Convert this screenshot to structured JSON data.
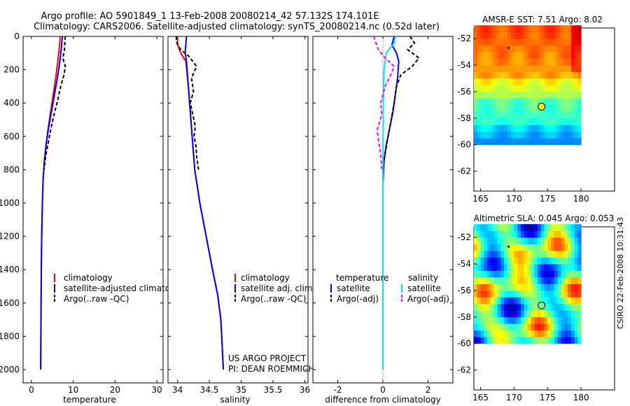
{
  "title": {
    "line1": "Argo profile: AO 5901849_1 13-Feb-2008 20080214_42 57.132S 174.101E",
    "line2": "Climatology: CARS2006. Satellite-adjusted climatology: synTS_20080214.nc (0.52d later)"
  },
  "credit": "CSIRO 22-Feb-2008 10:31:43",
  "project_note": {
    "line1": "US ARGO PROJECT",
    "line2": "PI: DEAN ROEMMICH"
  },
  "colors": {
    "climatology": "#ff0000",
    "satellite": "#0000ff",
    "argo": "#000000",
    "salinity_satellite": "#00e5ee",
    "argo_adj_salinity": "#ff00ff"
  },
  "chart_data": [
    {
      "id": "temperature",
      "type": "line",
      "xlabel": "temperature",
      "ylabel": "",
      "xlim": [
        -2,
        31.5
      ],
      "ylim": [
        2080,
        0
      ],
      "xticks": [
        "0",
        "10",
        "20",
        "30"
      ],
      "xtick_values": [
        0,
        10,
        20,
        30
      ],
      "yticks": [
        "0",
        "200",
        "400",
        "600",
        "800",
        "1000",
        "1200",
        "1400",
        "1600",
        "1800",
        "2000"
      ],
      "ytick_values": [
        0,
        200,
        400,
        600,
        800,
        1000,
        1200,
        1400,
        1600,
        1800,
        2000
      ],
      "legend": [
        "climatology",
        "satellite-adjusted climatology",
        "Argo(..raw -QC)"
      ],
      "series": [
        {
          "name": "climatology",
          "color": "#ff0000",
          "dash": false,
          "x": [
            6.9,
            6.7,
            6.3,
            5.8,
            5.2,
            4.6,
            4.0,
            3.5,
            3.1,
            2.8,
            2.6,
            2.45,
            2.35,
            2.3,
            2.25,
            2.2
          ],
          "y": [
            0,
            60,
            150,
            250,
            350,
            450,
            550,
            650,
            750,
            850,
            1000,
            1200,
            1400,
            1600,
            1800,
            2000
          ]
        },
        {
          "name": "satellite-adjusted climatology",
          "color": "#0000ff",
          "dash": false,
          "x": [
            7.4,
            7.2,
            6.8,
            6.2,
            5.5,
            4.8,
            4.1,
            3.5,
            3.1,
            2.8,
            2.6,
            2.45,
            2.35,
            2.3,
            2.25,
            2.2
          ],
          "y": [
            0,
            60,
            150,
            250,
            350,
            450,
            550,
            650,
            750,
            850,
            1000,
            1200,
            1400,
            1600,
            1800,
            2000
          ]
        },
        {
          "name": "Argo(..raw -QC)",
          "color": "#000000",
          "dash": true,
          "x": [
            8.1,
            8.0,
            7.9,
            7.5,
            8.1,
            7.8,
            7.0,
            6.3,
            5.3,
            4.6,
            4.0,
            3.4,
            3.0
          ],
          "y": [
            0,
            40,
            80,
            130,
            180,
            230,
            300,
            380,
            480,
            560,
            640,
            720,
            800
          ]
        }
      ]
    },
    {
      "id": "salinity",
      "type": "line",
      "xlabel": "salinity",
      "ylabel": "",
      "xlim": [
        33.85,
        36.05
      ],
      "ylim": [
        2080,
        0
      ],
      "xticks": [
        "34",
        "34.5",
        "35",
        "35.5",
        "36"
      ],
      "xtick_values": [
        34,
        34.5,
        35,
        35.5,
        36
      ],
      "legend": [
        "climatology",
        "satellite adj. clim.",
        "Argo(..raw -QC)"
      ],
      "series": [
        {
          "name": "climatology",
          "color": "#ff0000",
          "dash": false,
          "x": [
            34.0,
            34.0,
            34.05,
            34.13,
            34.17,
            34.2,
            34.23,
            34.27,
            34.35,
            34.45,
            34.55,
            34.63,
            34.68,
            34.7,
            34.72
          ],
          "y": [
            0,
            50,
            100,
            150,
            300,
            450,
            600,
            800,
            1000,
            1200,
            1400,
            1550,
            1700,
            1850,
            2000
          ]
        },
        {
          "name": "satellite adj. clim.",
          "color": "#0000ff",
          "dash": false,
          "x": [
            34.14,
            34.13,
            34.12,
            34.14,
            34.17,
            34.2,
            34.23,
            34.27,
            34.35,
            34.45,
            34.55,
            34.63,
            34.68,
            34.7,
            34.72
          ],
          "y": [
            0,
            50,
            100,
            150,
            300,
            450,
            600,
            800,
            1000,
            1200,
            1400,
            1550,
            1700,
            1850,
            2000
          ]
        },
        {
          "name": "Argo(..raw -QC)",
          "color": "#000000",
          "dash": true,
          "x": [
            33.98,
            33.99,
            34.05,
            34.18,
            34.3,
            34.22,
            34.25,
            34.2,
            34.24,
            34.28,
            34.26,
            34.29,
            34.3,
            34.33
          ],
          "y": [
            0,
            40,
            80,
            120,
            180,
            250,
            330,
            400,
            470,
            540,
            600,
            660,
            720,
            800
          ]
        }
      ]
    },
    {
      "id": "difference",
      "type": "line",
      "xlabel": "difference from climatology",
      "ylabel": "",
      "xlim": [
        -3.1,
        3.1
      ],
      "ylim": [
        2080,
        0
      ],
      "xticks": [
        "-2",
        "0",
        "2"
      ],
      "xtick_values": [
        -2,
        0,
        2
      ],
      "legend_groups": [
        {
          "title": "temperature",
          "items": [
            "satellite",
            "Argo(-adj)"
          ]
        },
        {
          "title": "salinity",
          "items": [
            "satellite",
            "Argo(-adj)"
          ]
        }
      ],
      "series": [
        {
          "name": "temperature satellite",
          "color": "#0000ff",
          "dash": false,
          "x": [
            0.5,
            0.4,
            0.6,
            0.7,
            0.65,
            0.55,
            0.45,
            0.3,
            0.15,
            0.05,
            0.0,
            0.0,
            0.0
          ],
          "y": [
            0,
            50,
            100,
            150,
            250,
            350,
            450,
            550,
            650,
            750,
            900,
            1200,
            2000
          ]
        },
        {
          "name": "temperature Argo(-adj)",
          "color": "#000000",
          "dash": true,
          "x": [
            1.2,
            1.4,
            1.1,
            1.6,
            1.3,
            0.8,
            0.6,
            0.5,
            0.3,
            0.1,
            0.0
          ],
          "y": [
            0,
            40,
            80,
            130,
            180,
            230,
            300,
            400,
            550,
            700,
            800
          ]
        },
        {
          "name": "salinity satellite",
          "color": "#00e5ee",
          "dash": false,
          "x": [
            0.55,
            0.5,
            0.15,
            0.05,
            0.02,
            0.0,
            0.0,
            0.0,
            0.0
          ],
          "y": [
            0,
            40,
            100,
            200,
            400,
            800,
            1000,
            1400,
            2000
          ]
        },
        {
          "name": "salinity Argo(-adj)",
          "color": "#ff00ff",
          "dash": true,
          "x": [
            -0.4,
            -0.3,
            -0.2,
            0.1,
            0.5,
            0.35,
            0.1,
            -0.1,
            -0.05,
            -0.25,
            -0.2,
            -0.1,
            -0.05
          ],
          "y": [
            0,
            40,
            80,
            130,
            180,
            230,
            300,
            400,
            470,
            560,
            620,
            700,
            800
          ]
        }
      ]
    },
    {
      "id": "amsr-map",
      "type": "heatmap",
      "title": "AMSR-E SST: 7.51 Argo: 8.02",
      "xlim": [
        164,
        185
      ],
      "ylim": [
        -63.5,
        -51.2
      ],
      "xticks": [
        "165",
        "170",
        "175",
        "180"
      ],
      "xtick_values": [
        165,
        170,
        175,
        180
      ],
      "yticks": [
        "-52",
        "-54",
        "-56",
        "-58",
        "-60",
        "-62"
      ],
      "ytick_values": [
        -52,
        -54,
        -56,
        -58,
        -60,
        -62
      ],
      "argo_position": {
        "lon": 174.101,
        "lat": -57.132
      },
      "prior_position": {
        "lon": 169.1,
        "lat": -52.7
      }
    },
    {
      "id": "sla-map",
      "type": "heatmap",
      "title": "Altimetric SLA: 0.045 Argo: 0.053",
      "xlim": [
        164,
        185
      ],
      "ylim": [
        -63.5,
        -51.2
      ],
      "xticks": [
        "165",
        "170",
        "175",
        "180"
      ],
      "xtick_values": [
        165,
        170,
        175,
        180
      ],
      "yticks": [
        "-52",
        "-54",
        "-56",
        "-58",
        "-60",
        "-62"
      ],
      "ytick_values": [
        -52,
        -54,
        -56,
        -58,
        -60,
        -62
      ],
      "argo_position": {
        "lon": 174.101,
        "lat": -57.132
      },
      "prior_position": {
        "lon": 169.1,
        "lat": -52.7
      }
    }
  ]
}
